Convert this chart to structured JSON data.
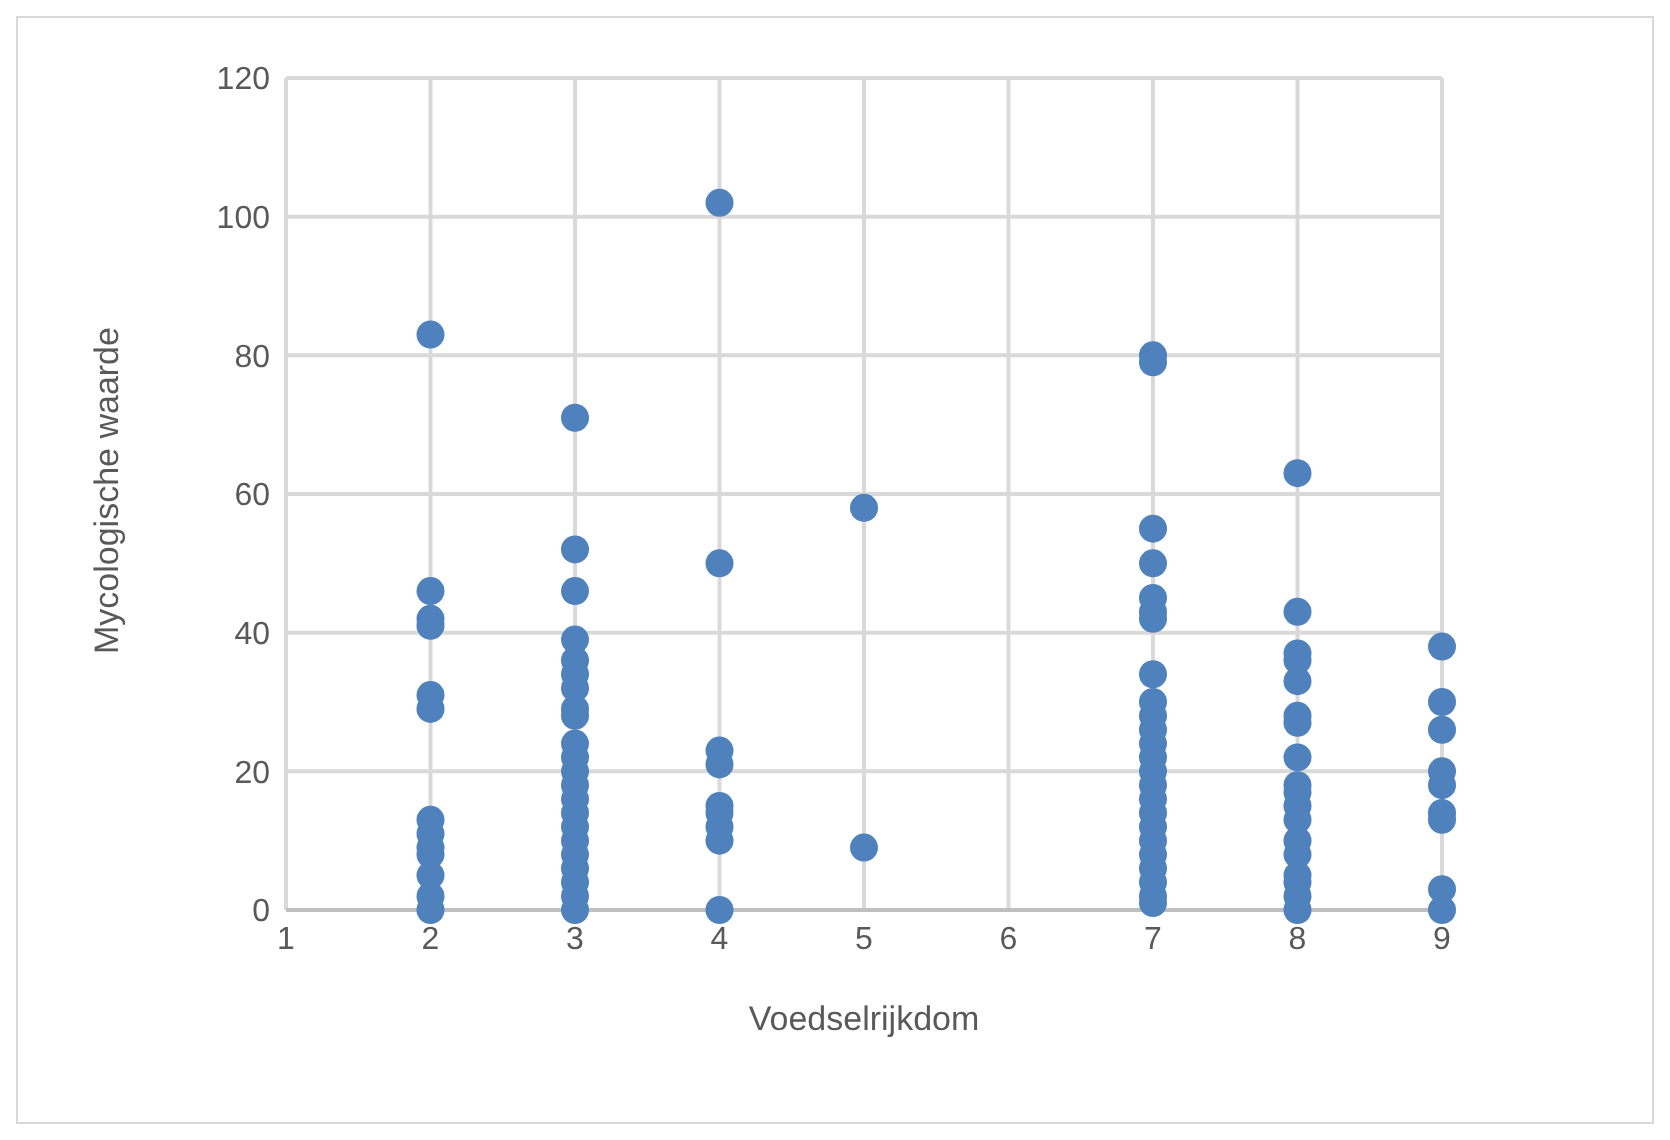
{
  "chart_data": {
    "type": "scatter",
    "xlabel": "Voedselrijkdom",
    "ylabel": "Mycologische waarde",
    "x": [
      2,
      2,
      2,
      2,
      2,
      2,
      2,
      2,
      2,
      2,
      2,
      2,
      2,
      3,
      3,
      3,
      3,
      3,
      3,
      3,
      3,
      3,
      3,
      3,
      3,
      3,
      3,
      3,
      3,
      3,
      3,
      3,
      3,
      3,
      3,
      4,
      4,
      4,
      4,
      4,
      4,
      4,
      4,
      4,
      5,
      5,
      7,
      7,
      7,
      7,
      7,
      7,
      7,
      7,
      7,
      7,
      7,
      7,
      7,
      7,
      7,
      7,
      7,
      7,
      7,
      7,
      7,
      7,
      7,
      7,
      8,
      8,
      8,
      8,
      8,
      8,
      8,
      8,
      8,
      8,
      8,
      8,
      8,
      8,
      8,
      8,
      8,
      8,
      9,
      9,
      9,
      9,
      9,
      9,
      9,
      9,
      9
    ],
    "values": [
      83,
      46,
      42,
      41,
      31,
      29,
      13,
      11,
      9,
      8,
      5,
      2,
      0,
      71,
      52,
      46,
      39,
      36,
      34,
      32,
      29,
      28,
      24,
      22,
      20,
      18,
      16,
      14,
      12,
      10,
      8,
      6,
      4,
      2,
      0,
      102,
      50,
      23,
      21,
      15,
      14,
      12,
      10,
      0,
      58,
      9,
      80,
      79,
      55,
      50,
      45,
      43,
      42,
      34,
      30,
      28,
      26,
      24,
      22,
      20,
      18,
      16,
      14,
      12,
      10,
      8,
      6,
      4,
      2,
      1,
      63,
      43,
      37,
      36,
      33,
      28,
      27,
      22,
      18,
      17,
      15,
      13,
      10,
      8,
      5,
      4,
      2,
      0,
      38,
      30,
      26,
      20,
      18,
      14,
      13,
      3,
      0
    ],
    "color": "#4f81bd",
    "marker": "circle",
    "xlim": [
      1,
      9
    ],
    "xticks": [
      1,
      2,
      3,
      4,
      5,
      6,
      7,
      8,
      9
    ],
    "ylim": [
      0,
      120
    ],
    "yticks": [
      0,
      20,
      40,
      60,
      80,
      100,
      120
    ],
    "grid": true,
    "legend": false
  }
}
